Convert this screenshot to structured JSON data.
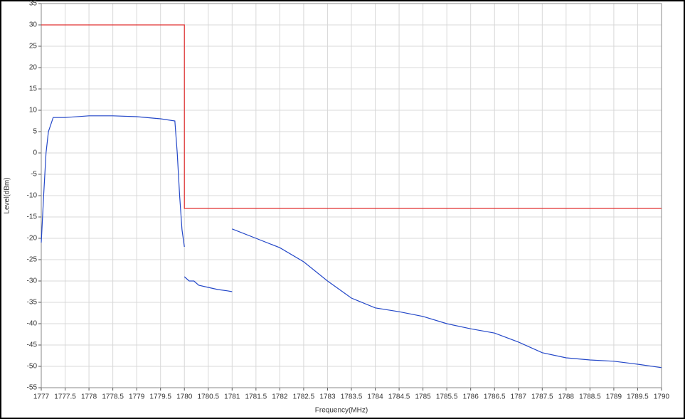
{
  "chart_data": {
    "type": "line",
    "x_label": "Frequency(MHz)",
    "y_label": "Level(dBm)",
    "xlim": [
      1777,
      1790
    ],
    "xticks": [
      1777,
      1777.5,
      1778,
      1778.5,
      1779,
      1779.5,
      1780,
      1780.5,
      1781,
      1781.5,
      1782,
      1782.5,
      1783,
      1783.5,
      1784,
      1784.5,
      1785,
      1785.5,
      1786,
      1786.5,
      1787,
      1787.5,
      1788,
      1788.5,
      1789,
      1789.5,
      1790
    ],
    "ylim": [
      -55,
      35
    ],
    "yticks": [
      -55,
      -50,
      -45,
      -40,
      -35,
      -30,
      -25,
      -20,
      -15,
      -10,
      -5,
      0,
      5,
      10,
      15,
      20,
      25,
      30,
      35
    ],
    "grid": true,
    "series": [
      {
        "color": "#2347c8",
        "x": [
          1777,
          1777.05,
          1777.1,
          1777.15,
          1777.25,
          1777.5,
          1778,
          1778.5,
          1779,
          1779.5,
          1779.8,
          1779.85,
          1779.9,
          1779.95,
          1780
        ],
        "values": [
          -21,
          -10,
          0,
          5,
          8.3,
          8.3,
          8.7,
          8.7,
          8.5,
          8,
          7.5,
          0,
          -10,
          -18,
          -22
        ]
      },
      {
        "color": "#2347c8",
        "x": [
          1780,
          1780.1,
          1780.2,
          1780.3,
          1780.5,
          1780.7,
          1780.9,
          1781
        ],
        "values": [
          -29,
          -30,
          -30,
          -31,
          -31.5,
          -32,
          -32.3,
          -32.5
        ]
      },
      {
        "color": "#2347c8",
        "x": [
          1781,
          1781.5,
          1782,
          1782.5,
          1783,
          1783.5,
          1784,
          1784.5,
          1785,
          1785.5,
          1786,
          1786.5,
          1787,
          1787.5,
          1788,
          1788.5,
          1789,
          1789.5,
          1790
        ],
        "values": [
          -17.8,
          -20,
          -22.2,
          -25.5,
          -30,
          -34,
          -36.3,
          -37.2,
          -38.3,
          -40,
          -41.2,
          -42.2,
          -44.3,
          -46.8,
          -48,
          -48.5,
          -48.8,
          -49.5,
          -50.3
        ]
      },
      {
        "color": "#e03030",
        "x": [
          1777,
          1780,
          1780,
          1790
        ],
        "values": [
          30,
          30,
          -13,
          -13
        ]
      }
    ]
  }
}
